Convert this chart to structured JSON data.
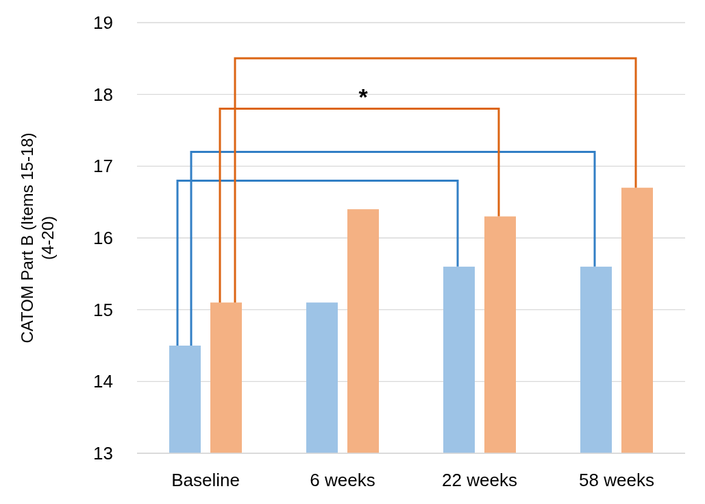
{
  "chart_data": {
    "type": "bar",
    "categories": [
      "Baseline",
      "6 weeks",
      "22 weeks",
      "58 weeks"
    ],
    "series": [
      {
        "color": "#9dc3e6",
        "values": [
          14.5,
          15.1,
          15.6,
          15.6
        ]
      },
      {
        "color": "#f4b183",
        "values": [
          15.1,
          16.4,
          16.3,
          16.7
        ]
      }
    ],
    "ylabel": "CATOM Part B (Items 15-18) (4-20)",
    "ylim": [
      13,
      19
    ],
    "yticks": [
      13,
      14,
      15,
      16,
      17,
      18,
      19
    ],
    "grid": "y",
    "annotations": [
      "*"
    ]
  }
}
